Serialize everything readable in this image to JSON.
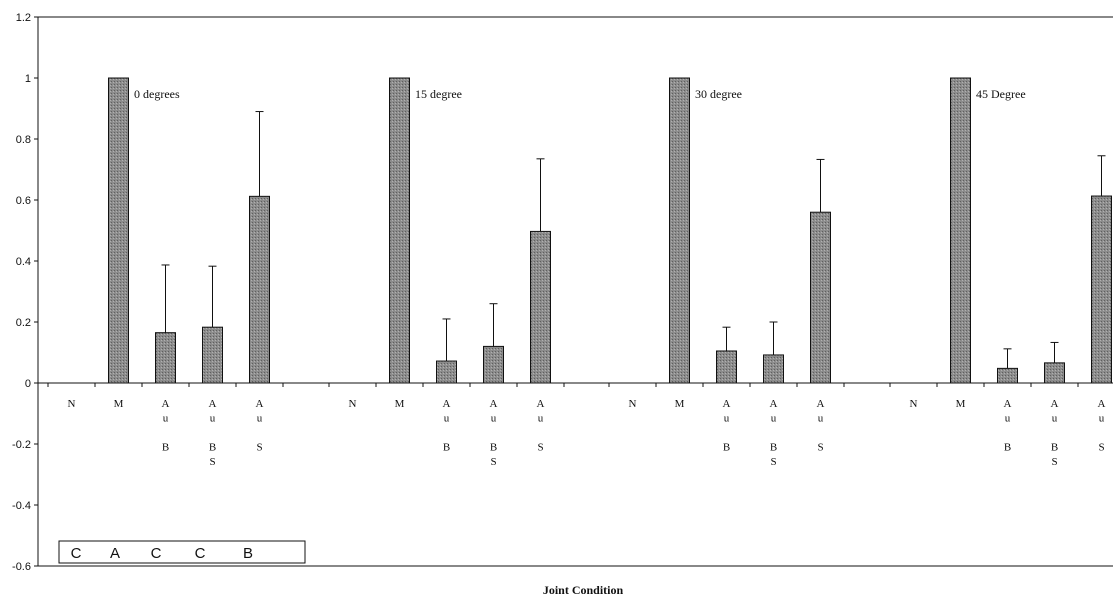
{
  "chart_data": {
    "type": "bar",
    "xlabel": "Joint Condition",
    "ylabel": "",
    "ylim": [
      -0.6,
      1.2
    ],
    "yticks": [
      "-0.6",
      "-0.4",
      "-0.2",
      "0",
      "0.2",
      "0.4",
      "0.6",
      "0.8",
      "1",
      "1.2"
    ],
    "grid": false,
    "bar_color": "#8c8c8c",
    "category_labels": [
      [
        "N"
      ],
      [
        "M"
      ],
      [
        "A",
        "u",
        "",
        "B"
      ],
      [
        "A",
        "u",
        "",
        "B",
        "S"
      ],
      [
        "A",
        "u",
        "",
        "S"
      ]
    ],
    "groups": [
      {
        "label": "0 degrees",
        "values": [
          null,
          1.0,
          0.165,
          0.183,
          0.612
        ],
        "errors": [
          null,
          null,
          0.222,
          0.2,
          0.278
        ]
      },
      {
        "label": "15 degree",
        "values": [
          null,
          1.0,
          0.072,
          0.12,
          0.497
        ],
        "errors": [
          null,
          null,
          0.138,
          0.14,
          0.238
        ]
      },
      {
        "label": "30 degree",
        "values": [
          null,
          1.0,
          0.105,
          0.092,
          0.56
        ],
        "errors": [
          null,
          null,
          0.078,
          0.108,
          0.173
        ]
      },
      {
        "label": "45 Degree",
        "values": [
          null,
          1.0,
          0.048,
          0.066,
          0.613
        ],
        "errors": [
          null,
          null,
          0.064,
          0.067,
          0.132
        ]
      }
    ],
    "legend_box": [
      "C",
      "A",
      "C",
      "C",
      "B"
    ]
  }
}
